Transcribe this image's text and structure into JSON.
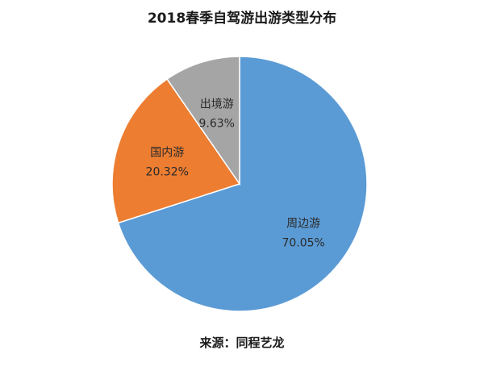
{
  "chart_data": {
    "type": "pie",
    "title": "2018春季自驾游出游类型分布",
    "source_note": "来源：同程艺龙",
    "slices": [
      {
        "label": "周边游",
        "value": 70.05,
        "value_label": "70.05%",
        "color": "#5b9bd5"
      },
      {
        "label": "国内游",
        "value": 20.32,
        "value_label": "20.32%",
        "color": "#ed7d31"
      },
      {
        "label": "出境游",
        "value": 9.63,
        "value_label": "9.63%",
        "color": "#a5a5a5"
      }
    ],
    "start_angle": "12 o'clock",
    "direction": "clockwise",
    "legend": "none"
  }
}
